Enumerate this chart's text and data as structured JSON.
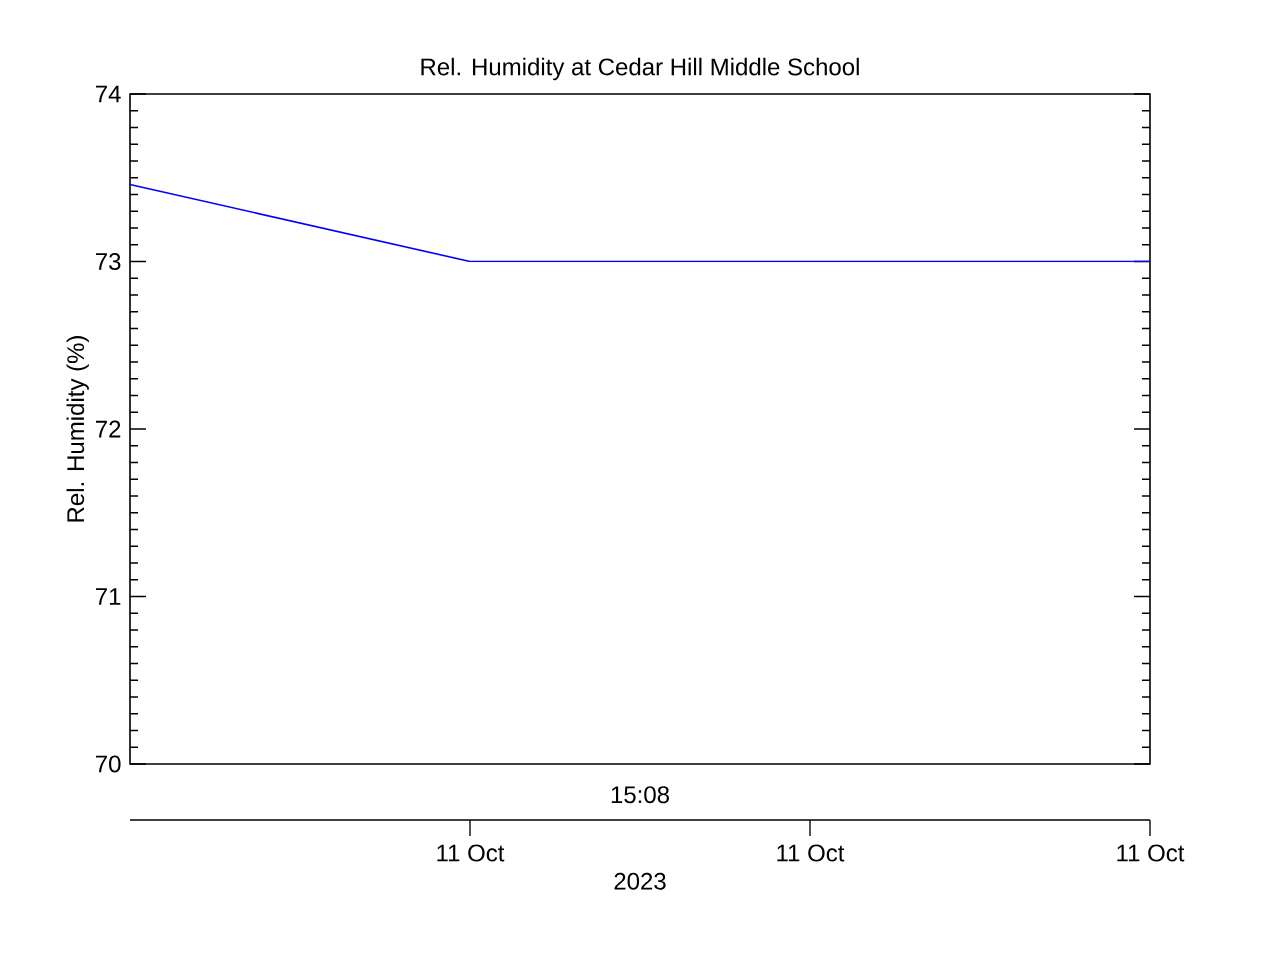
{
  "chart_data": {
    "type": "line",
    "title": "Rel. Humidity at Cedar Hill Middle School",
    "ylabel": "Rel. Humidity (%)",
    "xlabel": "2023",
    "annotations": [
      "15:08"
    ],
    "categories": [
      null,
      "11 Oct",
      "11 Oct",
      "11 Oct"
    ],
    "series": [
      {
        "color": "#0000ff",
        "values": [
          73.46,
          73.0,
          73.0,
          73.0
        ]
      }
    ],
    "ylim": [
      70,
      74
    ],
    "yticks": [
      70,
      71,
      72,
      73,
      74
    ],
    "grid": false,
    "marker": "none",
    "line_style": "solid"
  }
}
